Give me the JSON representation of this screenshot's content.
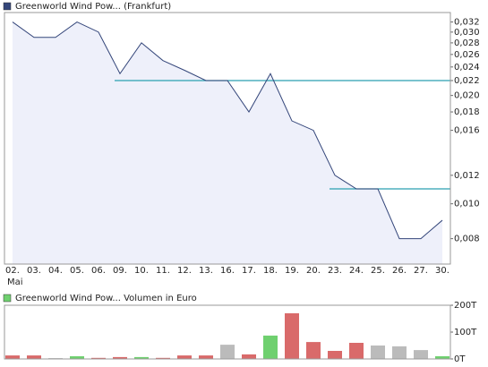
{
  "chart_data": [
    {
      "type": "line",
      "series": [
        {
          "name": "Greenworld Wind Pow... (Frankfurt)",
          "color": "#34467a",
          "values": [
            0.032,
            0.029,
            0.029,
            0.032,
            0.03,
            0.023,
            0.028,
            0.025,
            0.0235,
            0.022,
            0.022,
            0.018,
            0.023,
            0.017,
            0.016,
            0.012,
            0.011,
            0.011,
            0.008,
            0.008,
            0.009
          ]
        }
      ],
      "area_color": "#eef0fa",
      "categories": [
        "02.",
        "03.",
        "04.",
        "05.",
        "06.",
        "09.",
        "10.",
        "11.",
        "12.",
        "13.",
        "16.",
        "17.",
        "18.",
        "19.",
        "20.",
        "23.",
        "24.",
        "25.",
        "26.",
        "27.",
        "30."
      ],
      "month_label": "Mai",
      "log_scale": true,
      "ylim": [
        0.0068,
        0.034
      ],
      "yticks": [
        {
          "value": 0.008,
          "label": "0,008"
        },
        {
          "value": 0.01,
          "label": "0,010"
        },
        {
          "value": 0.012,
          "label": "0,012"
        },
        {
          "value": 0.016,
          "label": "0,016"
        },
        {
          "value": 0.018,
          "label": "0,018"
        },
        {
          "value": 0.02,
          "label": "0,020"
        },
        {
          "value": 0.022,
          "label": "0,022"
        },
        {
          "value": 0.024,
          "label": "0,024"
        },
        {
          "value": 0.026,
          "label": "0,026"
        },
        {
          "value": 0.028,
          "label": "0,028"
        },
        {
          "value": 0.03,
          "label": "0,030"
        },
        {
          "value": 0.032,
          "label": "0,032"
        }
      ],
      "levels": [
        {
          "value": 0.022,
          "start": "09."
        },
        {
          "value": 0.011,
          "start": "23."
        }
      ],
      "level_color": "#2a9fb0"
    },
    {
      "type": "bar",
      "series": [
        {
          "name": "Greenworld Wind Pow... Volumen in Euro",
          "color": "#6fd06f",
          "values": [
            13000,
            13000,
            3000,
            10000,
            4000,
            7000,
            7000,
            4000,
            13000,
            13000,
            53000,
            17000,
            87000,
            170000,
            63000,
            30000,
            60000,
            50000,
            47000,
            33000,
            10000
          ],
          "colors": [
            "#d96a6a",
            "#d96a6a",
            "#bbbbbb",
            "#6fd06f",
            "#d96a6a",
            "#d96a6a",
            "#6fd06f",
            "#d96a6a",
            "#d96a6a",
            "#d96a6a",
            "#bbbbbb",
            "#d96a6a",
            "#6fd06f",
            "#d96a6a",
            "#d96a6a",
            "#d96a6a",
            "#d96a6a",
            "#bbbbbb",
            "#bbbbbb",
            "#bbbbbb",
            "#6fd06f"
          ]
        }
      ],
      "ylim": [
        0,
        200000
      ],
      "yticks": [
        {
          "value": 0,
          "label": "0T"
        },
        {
          "value": 100000,
          "label": "100T"
        },
        {
          "value": 200000,
          "label": "200T"
        }
      ]
    }
  ]
}
